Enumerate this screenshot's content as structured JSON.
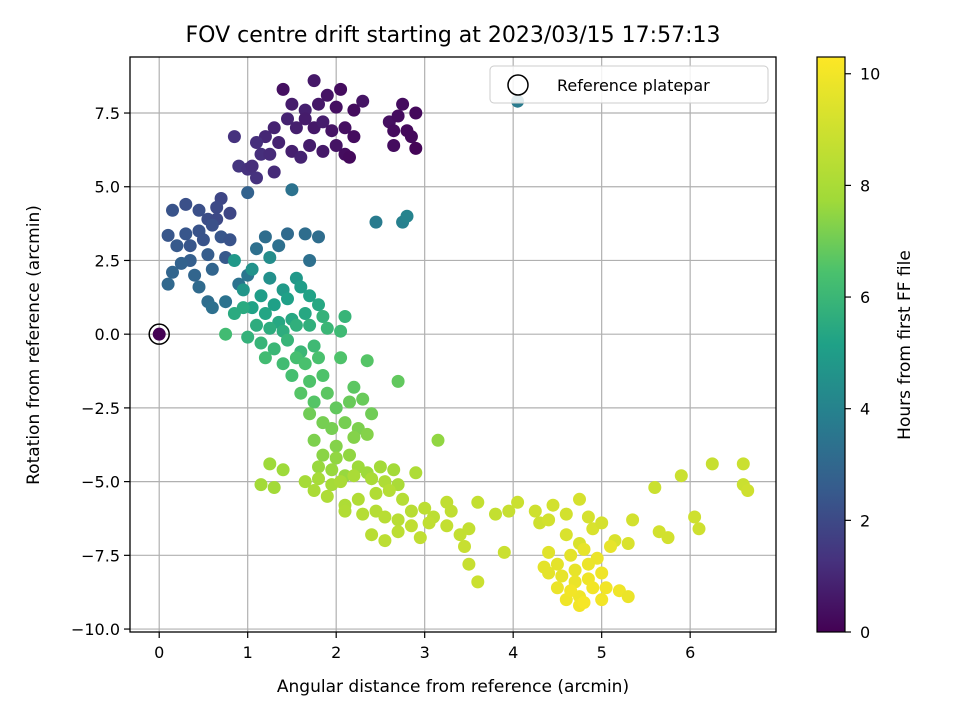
{
  "chart_data": {
    "type": "scatter",
    "title": "FOV centre drift starting at 2023/03/15 17:57:13",
    "xlabel": "Angular distance from reference (arcmin)",
    "ylabel": "Rotation from reference (arcmin)",
    "xlim": [
      -0.33,
      6.97
    ],
    "ylim": [
      -10.1,
      9.4
    ],
    "x_ticks": [
      0,
      1,
      2,
      3,
      4,
      5,
      6
    ],
    "x_tick_labels": [
      "0",
      "1",
      "2",
      "3",
      "4",
      "5",
      "6"
    ],
    "y_ticks": [
      -10.0,
      -7.5,
      -5.0,
      -2.5,
      0.0,
      2.5,
      5.0,
      7.5
    ],
    "y_tick_labels": [
      "−10.0",
      "−7.5",
      "−5.0",
      "−2.5",
      "0.0",
      "2.5",
      "5.0",
      "7.5"
    ],
    "grid": true,
    "legend": {
      "location": "upper right",
      "entries": [
        "Reference platepar"
      ]
    },
    "colorbar": {
      "label": "Hours from first FF file",
      "colormap": "viridis",
      "range": [
        0,
        10.3
      ],
      "ticks": [
        0,
        2,
        4,
        6,
        8,
        10
      ],
      "tick_labels": [
        "0",
        "2",
        "4",
        "6",
        "8",
        "10"
      ]
    },
    "reference_point": {
      "name": "Reference platepar",
      "x": 0,
      "y": 0
    },
    "columns": [
      "x",
      "y",
      "hours"
    ],
    "points": [
      [
        1.4,
        8.3,
        0.4
      ],
      [
        1.75,
        8.6,
        0.6
      ],
      [
        1.9,
        8.1,
        0.5
      ],
      [
        2.05,
        8.3,
        0.3
      ],
      [
        2.3,
        7.9,
        0.5
      ],
      [
        1.5,
        7.8,
        0.7
      ],
      [
        1.65,
        7.6,
        0.8
      ],
      [
        1.8,
        7.8,
        0.6
      ],
      [
        2.0,
        7.7,
        0.4
      ],
      [
        2.2,
        7.6,
        0.3
      ],
      [
        2.75,
        7.8,
        0.3
      ],
      [
        2.9,
        7.5,
        0.2
      ],
      [
        2.6,
        7.2,
        0.4
      ],
      [
        2.7,
        7.4,
        0.3
      ],
      [
        1.45,
        7.3,
        0.9
      ],
      [
        1.55,
        7.0,
        0.8
      ],
      [
        1.65,
        7.3,
        0.7
      ],
      [
        1.75,
        7.0,
        0.6
      ],
      [
        1.85,
        7.2,
        0.7
      ],
      [
        1.95,
        6.9,
        0.5
      ],
      [
        2.1,
        7.0,
        0.4
      ],
      [
        2.2,
        6.7,
        0.3
      ],
      [
        1.3,
        7.0,
        0.9
      ],
      [
        1.2,
        6.7,
        1.0
      ],
      [
        1.35,
        6.5,
        0.9
      ],
      [
        1.5,
        6.2,
        0.8
      ],
      [
        1.6,
        6.0,
        0.9
      ],
      [
        1.7,
        6.4,
        0.7
      ],
      [
        1.85,
        6.2,
        0.6
      ],
      [
        2.0,
        6.4,
        0.5
      ],
      [
        2.1,
        6.1,
        0.3
      ],
      [
        2.65,
        6.9,
        0.3
      ],
      [
        2.8,
        6.9,
        0.2
      ],
      [
        2.85,
        6.7,
        0.2
      ],
      [
        2.65,
        6.4,
        0.3
      ],
      [
        2.9,
        6.3,
        0.1
      ],
      [
        0.85,
        6.7,
        1.3
      ],
      [
        1.1,
        6.5,
        1.2
      ],
      [
        1.15,
        6.1,
        1.2
      ],
      [
        1.25,
        6.1,
        1.1
      ],
      [
        0.9,
        5.7,
        1.4
      ],
      [
        1.0,
        5.6,
        1.3
      ],
      [
        1.1,
        5.3,
        1.3
      ],
      [
        1.05,
        5.7,
        1.2
      ],
      [
        1.3,
        5.5,
        1.1
      ],
      [
        2.15,
        6.0,
        0.2
      ],
      [
        4.05,
        7.9,
        3.7
      ],
      [
        0.15,
        4.2,
        2.3
      ],
      [
        0.3,
        4.4,
        2.2
      ],
      [
        0.45,
        4.2,
        2.2
      ],
      [
        0.55,
        3.9,
        2.1
      ],
      [
        0.65,
        3.9,
        2.0
      ],
      [
        0.7,
        4.6,
        1.9
      ],
      [
        0.8,
        4.1,
        1.9
      ],
      [
        0.65,
        4.3,
        2.0
      ],
      [
        0.45,
        3.5,
        2.3
      ],
      [
        0.3,
        3.4,
        2.4
      ],
      [
        0.1,
        3.35,
        2.4
      ],
      [
        0.2,
        3.0,
        2.5
      ],
      [
        0.35,
        3.0,
        2.4
      ],
      [
        0.5,
        3.2,
        2.3
      ],
      [
        0.6,
        3.7,
        2.2
      ],
      [
        0.55,
        2.7,
        2.6
      ],
      [
        0.7,
        3.3,
        2.4
      ],
      [
        0.8,
        3.2,
        2.3
      ],
      [
        0.75,
        2.6,
        2.5
      ],
      [
        0.35,
        2.5,
        2.7
      ],
      [
        0.25,
        2.4,
        2.8
      ],
      [
        0.15,
        2.1,
        2.9
      ],
      [
        0.4,
        2.0,
        2.9
      ],
      [
        0.45,
        1.6,
        3.1
      ],
      [
        0.6,
        2.2,
        2.9
      ],
      [
        0.1,
        1.7,
        3.0
      ],
      [
        0.55,
        1.1,
        3.2
      ],
      [
        0.6,
        0.9,
        3.3
      ],
      [
        0.75,
        1.1,
        3.4
      ],
      [
        0.9,
        1.7,
        3.4
      ],
      [
        1.0,
        2.0,
        3.5
      ],
      [
        1.1,
        2.9,
        3.3
      ],
      [
        1.2,
        3.3,
        3.2
      ],
      [
        1.35,
        3.0,
        3.3
      ],
      [
        1.45,
        3.4,
        3.1
      ],
      [
        1.65,
        3.4,
        3.2
      ],
      [
        1.8,
        3.3,
        3.2
      ],
      [
        1.0,
        4.8,
        2.8
      ],
      [
        1.5,
        4.9,
        3.4
      ],
      [
        1.7,
        2.5,
        3.3
      ],
      [
        2.45,
        3.8,
        3.7
      ],
      [
        2.75,
        3.8,
        3.9
      ],
      [
        2.8,
        4.0,
        4.0
      ],
      [
        1.25,
        2.6,
        4.4
      ],
      [
        1.05,
        2.2,
        4.6
      ],
      [
        0.95,
        1.5,
        4.7
      ],
      [
        0.85,
        2.5,
        4.8
      ],
      [
        1.25,
        1.9,
        4.5
      ],
      [
        1.4,
        1.5,
        4.9
      ],
      [
        1.55,
        1.9,
        4.8
      ],
      [
        1.15,
        1.3,
        5.0
      ],
      [
        1.3,
        1.0,
        5.1
      ],
      [
        1.45,
        1.2,
        5.1
      ],
      [
        1.6,
        1.6,
        5.0
      ],
      [
        1.7,
        1.3,
        5.2
      ],
      [
        1.05,
        0.9,
        5.2
      ],
      [
        1.2,
        0.7,
        5.3
      ],
      [
        1.35,
        0.4,
        5.4
      ],
      [
        1.5,
        0.5,
        5.4
      ],
      [
        1.65,
        0.7,
        5.4
      ],
      [
        1.8,
        1.0,
        5.4
      ],
      [
        0.85,
        0.7,
        5.5
      ],
      [
        0.95,
        0.9,
        5.5
      ],
      [
        1.1,
        0.3,
        5.6
      ],
      [
        1.25,
        0.2,
        5.6
      ],
      [
        1.4,
        0.1,
        5.6
      ],
      [
        1.55,
        0.3,
        5.7
      ],
      [
        1.7,
        0.3,
        5.7
      ],
      [
        1.85,
        0.6,
        5.8
      ],
      [
        1.0,
        -0.1,
        5.8
      ],
      [
        1.15,
        -0.3,
        5.9
      ],
      [
        1.3,
        -0.5,
        6.0
      ],
      [
        1.45,
        -0.2,
        5.9
      ],
      [
        1.6,
        -0.6,
        6.0
      ],
      [
        1.75,
        -0.4,
        6.1
      ],
      [
        1.9,
        0.2,
        6.0
      ],
      [
        2.05,
        0.1,
        6.1
      ],
      [
        2.1,
        0.6,
        5.9
      ],
      [
        0.75,
        0.0,
        6.2
      ],
      [
        1.2,
        -0.8,
        6.2
      ],
      [
        1.4,
        -1.0,
        6.2
      ],
      [
        1.5,
        -1.4,
        6.3
      ],
      [
        1.55,
        -0.8,
        6.3
      ],
      [
        1.65,
        -1.0,
        6.4
      ],
      [
        1.8,
        -0.8,
        6.4
      ],
      [
        1.7,
        -1.6,
        6.5
      ],
      [
        1.85,
        -1.4,
        6.5
      ],
      [
        1.6,
        -2.0,
        6.6
      ],
      [
        1.75,
        -2.3,
        6.6
      ],
      [
        1.9,
        -2.0,
        6.7
      ],
      [
        2.05,
        -0.8,
        6.5
      ],
      [
        2.2,
        -1.8,
        6.7
      ],
      [
        2.35,
        -0.9,
        6.6
      ],
      [
        2.7,
        -1.6,
        6.8
      ],
      [
        2.0,
        -2.5,
        6.8
      ],
      [
        2.15,
        -2.3,
        6.9
      ],
      [
        2.3,
        -2.2,
        6.9
      ],
      [
        2.4,
        -2.7,
        7.0
      ],
      [
        1.7,
        -2.7,
        7.0
      ],
      [
        1.85,
        -3.0,
        7.1
      ],
      [
        1.95,
        -3.2,
        7.1
      ],
      [
        2.1,
        -3.0,
        7.1
      ],
      [
        2.25,
        -3.2,
        7.2
      ],
      [
        2.35,
        -3.4,
        7.3
      ],
      [
        1.75,
        -3.6,
        7.2
      ],
      [
        2.0,
        -3.8,
        7.3
      ],
      [
        2.2,
        -3.5,
        7.3
      ],
      [
        3.15,
        -3.6,
        7.5
      ],
      [
        1.85,
        -4.1,
        7.4
      ],
      [
        2.0,
        -4.2,
        7.5
      ],
      [
        2.15,
        -4.1,
        7.5
      ],
      [
        1.8,
        -4.5,
        7.6
      ],
      [
        1.95,
        -4.6,
        7.6
      ],
      [
        2.1,
        -4.8,
        7.6
      ],
      [
        2.25,
        -4.5,
        7.7
      ],
      [
        2.35,
        -4.7,
        7.7
      ],
      [
        2.5,
        -4.5,
        7.8
      ],
      [
        2.65,
        -4.6,
        7.8
      ],
      [
        1.25,
        -4.4,
        7.7
      ],
      [
        1.4,
        -4.6,
        7.7
      ],
      [
        1.15,
        -5.1,
        7.8
      ],
      [
        1.3,
        -5.2,
        7.8
      ],
      [
        1.65,
        -5.0,
        7.9
      ],
      [
        1.8,
        -4.9,
        7.9
      ],
      [
        1.95,
        -5.1,
        7.9
      ],
      [
        2.05,
        -5.0,
        8.0
      ],
      [
        2.2,
        -4.8,
        8.0
      ],
      [
        2.4,
        -4.9,
        8.0
      ],
      [
        2.55,
        -5.0,
        8.1
      ],
      [
        2.7,
        -5.1,
        8.0
      ],
      [
        2.9,
        -4.7,
        8.1
      ],
      [
        1.75,
        -5.3,
        8.0
      ],
      [
        1.9,
        -5.5,
        8.1
      ],
      [
        2.1,
        -5.8,
        8.1
      ],
      [
        2.25,
        -5.6,
        8.2
      ],
      [
        2.45,
        -5.4,
        8.2
      ],
      [
        2.6,
        -5.3,
        8.3
      ],
      [
        2.75,
        -5.6,
        8.3
      ],
      [
        2.1,
        -6.0,
        8.2
      ],
      [
        2.3,
        -6.1,
        8.3
      ],
      [
        2.45,
        -6.0,
        8.3
      ],
      [
        2.55,
        -6.2,
        8.4
      ],
      [
        2.7,
        -6.3,
        8.4
      ],
      [
        2.85,
        -6.0,
        8.4
      ],
      [
        3.0,
        -5.9,
        8.5
      ],
      [
        3.1,
        -6.2,
        8.5
      ],
      [
        3.25,
        -5.7,
        8.6
      ],
      [
        3.3,
        -6.0,
        8.6
      ],
      [
        2.4,
        -6.8,
        8.4
      ],
      [
        2.55,
        -7.0,
        8.5
      ],
      [
        2.7,
        -6.7,
        8.5
      ],
      [
        2.85,
        -6.5,
        8.6
      ],
      [
        2.95,
        -6.9,
        8.6
      ],
      [
        3.05,
        -6.4,
        8.6
      ],
      [
        3.25,
        -6.5,
        8.7
      ],
      [
        3.4,
        -6.8,
        8.7
      ],
      [
        3.5,
        -6.6,
        8.7
      ],
      [
        3.6,
        -5.7,
        8.7
      ],
      [
        3.45,
        -7.2,
        8.8
      ],
      [
        3.5,
        -7.8,
        8.8
      ],
      [
        3.6,
        -8.4,
        8.9
      ],
      [
        3.8,
        -6.1,
        8.7
      ],
      [
        3.9,
        -7.4,
        8.9
      ],
      [
        3.95,
        -6.0,
        8.8
      ],
      [
        4.05,
        -5.7,
        8.9
      ],
      [
        4.25,
        -6.0,
        9.0
      ],
      [
        4.3,
        -6.4,
        9.0
      ],
      [
        4.4,
        -6.3,
        9.1
      ],
      [
        4.45,
        -5.8,
        9.1
      ],
      [
        4.6,
        -6.1,
        9.1
      ],
      [
        4.75,
        -5.6,
        9.2
      ],
      [
        4.85,
        -6.2,
        9.2
      ],
      [
        4.6,
        -6.8,
        9.3
      ],
      [
        4.75,
        -7.1,
        9.3
      ],
      [
        4.9,
        -6.6,
        9.3
      ],
      [
        5.0,
        -6.4,
        9.2
      ],
      [
        5.15,
        -7.0,
        9.3
      ],
      [
        5.3,
        -7.1,
        9.3
      ],
      [
        5.35,
        -6.3,
        9.1
      ],
      [
        5.6,
        -5.2,
        8.9
      ],
      [
        5.65,
        -6.7,
        9.1
      ],
      [
        5.75,
        -6.9,
        9.1
      ],
      [
        5.9,
        -4.8,
        8.9
      ],
      [
        6.05,
        -6.2,
        9.0
      ],
      [
        6.1,
        -6.6,
        9.0
      ],
      [
        6.25,
        -4.4,
        8.8
      ],
      [
        6.6,
        -4.4,
        8.9
      ],
      [
        6.6,
        -5.1,
        8.9
      ],
      [
        6.65,
        -5.3,
        9.0
      ],
      [
        4.4,
        -7.4,
        9.5
      ],
      [
        4.5,
        -7.8,
        9.6
      ],
      [
        4.55,
        -8.2,
        9.7
      ],
      [
        4.4,
        -8.1,
        9.6
      ],
      [
        4.65,
        -7.5,
        9.6
      ],
      [
        4.7,
        -8.0,
        9.7
      ],
      [
        4.7,
        -8.4,
        9.8
      ],
      [
        4.75,
        -8.9,
        9.9
      ],
      [
        4.8,
        -7.3,
        9.7
      ],
      [
        4.85,
        -7.8,
        9.8
      ],
      [
        4.85,
        -8.3,
        9.9
      ],
      [
        4.75,
        -9.2,
        10.0
      ],
      [
        4.9,
        -8.6,
        10.0
      ],
      [
        4.95,
        -7.6,
        9.8
      ],
      [
        5.0,
        -8.1,
        9.9
      ],
      [
        5.05,
        -8.6,
        10.0
      ],
      [
        5.1,
        -7.2,
        9.7
      ],
      [
        5.2,
        -8.7,
        9.9
      ],
      [
        5.3,
        -8.9,
        9.8
      ],
      [
        4.5,
        -8.6,
        9.8
      ],
      [
        4.6,
        -9.0,
        9.9
      ],
      [
        4.65,
        -8.7,
        10.0
      ],
      [
        4.8,
        -9.1,
        10.1
      ],
      [
        4.35,
        -7.9,
        9.6
      ],
      [
        5.0,
        -9.0,
        10.0
      ]
    ]
  }
}
